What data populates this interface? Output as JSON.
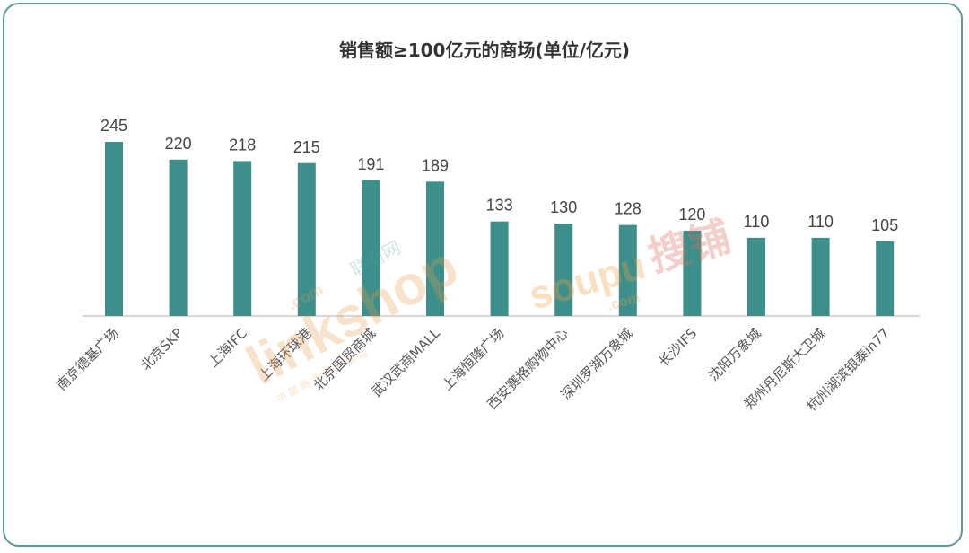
{
  "chart_data": {
    "type": "bar",
    "title": "销售额≥100亿元的商场(单位/亿元)",
    "categories": [
      "南京德基广场",
      "北京SKP",
      "上海IFC",
      "上海环球港",
      "北京国贸商城",
      "武汉武商MALL",
      "上海恒隆广场",
      "西安赛格购物中心",
      "深圳罗湖万象城",
      "长沙IFS",
      "沈阳万象城",
      "郑州丹尼斯大卫城",
      "杭州湖滨银泰in77"
    ],
    "values": [
      245,
      220,
      218,
      215,
      191,
      189,
      133,
      130,
      128,
      120,
      110,
      110,
      105
    ],
    "ylim": [
      0,
      250
    ],
    "grid": false,
    "bar_color": "#3d8f8b"
  },
  "watermarks": {
    "linkshop": {
      "brand": "linkshop",
      "com": ".com",
      "cn": "联商网",
      "sub": "中 国 商 业 门 户 网 站"
    },
    "soupu": {
      "brand": "soupu",
      "com": ".com",
      "cn": "搜铺"
    }
  }
}
